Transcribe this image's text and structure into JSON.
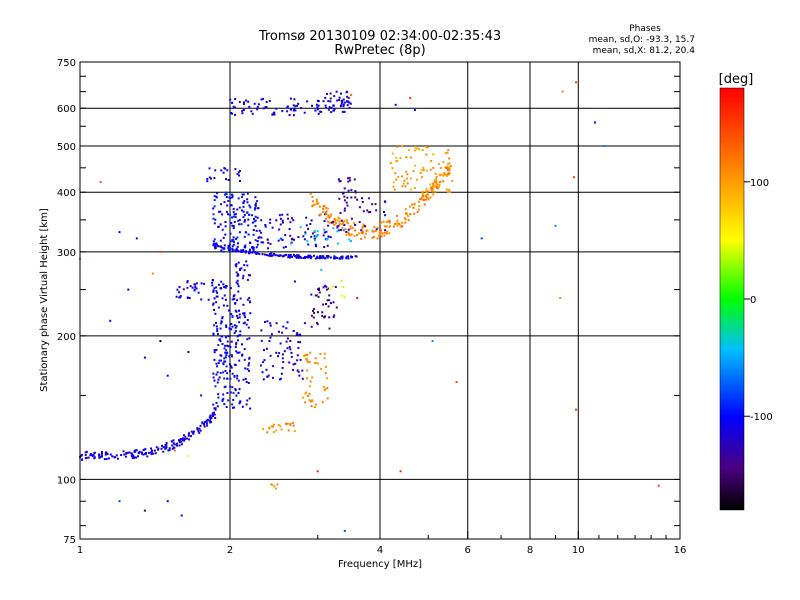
{
  "chart_data": {
    "type": "scatter",
    "title": "Tromsø 20130109 02:34:00-02:35:43",
    "subtitle": "RwPretec (8p)",
    "xlabel": "Frequency [MHz]",
    "ylabel": "Stationary phase Virtual Height [km]",
    "x_scale": "log2",
    "y_scale": "log",
    "xlim": [
      1,
      16
    ],
    "ylim": [
      75,
      750
    ],
    "x_ticks": [
      1,
      2,
      4,
      6,
      8,
      10,
      16
    ],
    "x_tick_labels": [
      "1",
      "2",
      "4",
      "6",
      "8",
      "10",
      "16"
    ],
    "y_ticks": [
      75,
      100,
      200,
      300,
      400,
      500,
      600,
      750
    ],
    "y_tick_labels": [
      "75",
      "100",
      "200",
      "300",
      "400",
      "500",
      "600",
      "750"
    ],
    "grid": true,
    "phase_stats": {
      "heading": "Phases",
      "line_o": "mean, sd,O: -93.3, 15.7",
      "line_x": "mean, sd,X:  81.2, 20.4"
    },
    "colorbar": {
      "unit_label": "[deg]",
      "range": [
        -180,
        180
      ],
      "ticks": [
        100,
        0,
        -100
      ],
      "tick_labels": [
        "100",
        "0",
        "-100"
      ]
    },
    "groups": [
      {
        "phase": -110,
        "x0": 1.0,
        "x1": 1.9,
        "y0": 112,
        "y1": 140,
        "n": 180,
        "curve": "riser"
      },
      {
        "phase": -105,
        "x0": 1.85,
        "x1": 2.05,
        "y0": 140,
        "y1": 260,
        "n": 150
      },
      {
        "phase": -110,
        "x0": 2.05,
        "x1": 2.2,
        "y0": 140,
        "y1": 290,
        "n": 100
      },
      {
        "phase": -115,
        "x0": 2.3,
        "x1": 2.85,
        "y0": 160,
        "y1": 215,
        "n": 70
      },
      {
        "phase": -110,
        "x0": 1.85,
        "x1": 3.6,
        "y0": 290,
        "y1": 305,
        "n": 160,
        "curve": "flat"
      },
      {
        "phase": -100,
        "x0": 1.85,
        "x1": 2.3,
        "y0": 300,
        "y1": 400,
        "n": 160
      },
      {
        "phase": -115,
        "x0": 2.3,
        "x1": 3.2,
        "y0": 305,
        "y1": 360,
        "n": 70
      },
      {
        "phase": -110,
        "x0": 2.0,
        "x1": 3.5,
        "y0": 580,
        "y1": 630,
        "n": 90
      },
      {
        "phase": -120,
        "x0": 3.1,
        "x1": 3.5,
        "y0": 600,
        "y1": 650,
        "n": 30
      },
      {
        "phase": -110,
        "x0": 1.55,
        "x1": 1.95,
        "y0": 238,
        "y1": 262,
        "n": 40
      },
      {
        "phase": -105,
        "x0": 1.8,
        "x1": 2.1,
        "y0": 420,
        "y1": 450,
        "n": 20
      },
      {
        "phase": 110,
        "x0": 2.9,
        "x1": 5.6,
        "y0": 330,
        "y1": 460,
        "n": 220,
        "curve": "arc"
      },
      {
        "phase": 100,
        "x0": 4.2,
        "x1": 5.6,
        "y0": 400,
        "y1": 500,
        "n": 80
      },
      {
        "phase": 110,
        "x0": 2.8,
        "x1": 3.15,
        "y0": 140,
        "y1": 185,
        "n": 45
      },
      {
        "phase": 110,
        "x0": 2.3,
        "x1": 2.7,
        "y0": 125,
        "y1": 132,
        "n": 20
      },
      {
        "phase": -140,
        "x0": 2.9,
        "x1": 3.3,
        "y0": 205,
        "y1": 255,
        "n": 40
      },
      {
        "phase": -130,
        "x0": 3.2,
        "x1": 4.1,
        "y0": 330,
        "y1": 390,
        "n": 40
      },
      {
        "phase": -135,
        "x0": 3.3,
        "x1": 3.6,
        "y0": 385,
        "y1": 430,
        "n": 20
      },
      {
        "phase": -40,
        "x0": 2.5,
        "x1": 3.5,
        "y0": 310,
        "y1": 340,
        "n": 20
      },
      {
        "phase": 110,
        "x0": 2.4,
        "x1": 2.5,
        "y0": 95,
        "y1": 99,
        "n": 5
      },
      {
        "phase": 40,
        "x0": 3.1,
        "x1": 3.4,
        "y0": 240,
        "y1": 262,
        "n": 6
      }
    ],
    "isolated_points": [
      {
        "x": 1.2,
        "y": 330,
        "phase": -110
      },
      {
        "x": 1.3,
        "y": 320,
        "phase": -110
      },
      {
        "x": 1.25,
        "y": 250,
        "phase": -100
      },
      {
        "x": 1.15,
        "y": 215,
        "phase": -110
      },
      {
        "x": 1.35,
        "y": 180,
        "phase": -105
      },
      {
        "x": 1.45,
        "y": 195,
        "phase": -180
      },
      {
        "x": 1.5,
        "y": 165,
        "phase": -110
      },
      {
        "x": 1.55,
        "y": 115,
        "phase": 130
      },
      {
        "x": 1.65,
        "y": 112,
        "phase": 60
      },
      {
        "x": 1.2,
        "y": 90,
        "phase": -80
      },
      {
        "x": 1.35,
        "y": 86,
        "phase": -140
      },
      {
        "x": 1.5,
        "y": 90,
        "phase": -110
      },
      {
        "x": 1.6,
        "y": 84,
        "phase": -120
      },
      {
        "x": 1.45,
        "y": 300,
        "phase": 150
      },
      {
        "x": 1.65,
        "y": 185,
        "phase": -100
      },
      {
        "x": 1.4,
        "y": 270,
        "phase": 110
      },
      {
        "x": 1.75,
        "y": 150,
        "phase": -95
      },
      {
        "x": 1.0,
        "y": 290,
        "phase": 110
      },
      {
        "x": 1.1,
        "y": 420,
        "phase": 140
      },
      {
        "x": 4.4,
        "y": 104,
        "phase": 160
      },
      {
        "x": 3.0,
        "y": 104,
        "phase": 160
      },
      {
        "x": 3.4,
        "y": 78,
        "phase": -80
      },
      {
        "x": 3.6,
        "y": 240,
        "phase": 170
      },
      {
        "x": 5.1,
        "y": 195,
        "phase": -60
      },
      {
        "x": 5.7,
        "y": 160,
        "phase": 140
      },
      {
        "x": 6.4,
        "y": 320,
        "phase": -80
      },
      {
        "x": 9.0,
        "y": 340,
        "phase": -60
      },
      {
        "x": 9.2,
        "y": 240,
        "phase": 110
      },
      {
        "x": 9.8,
        "y": 430,
        "phase": 150
      },
      {
        "x": 9.9,
        "y": 140,
        "phase": 150
      },
      {
        "x": 9.9,
        "y": 680,
        "phase": 150
      },
      {
        "x": 9.3,
        "y": 650,
        "phase": 110
      },
      {
        "x": 10.8,
        "y": 560,
        "phase": -100
      },
      {
        "x": 11.3,
        "y": 500,
        "phase": -60
      },
      {
        "x": 14.5,
        "y": 97,
        "phase": 150
      },
      {
        "x": 3.5,
        "y": 640,
        "phase": 130
      },
      {
        "x": 4.6,
        "y": 630,
        "phase": 160
      },
      {
        "x": 4.3,
        "y": 610,
        "phase": -110
      },
      {
        "x": 4.7,
        "y": 595,
        "phase": -100
      },
      {
        "x": 3.3,
        "y": 340,
        "phase": -110
      },
      {
        "x": 2.7,
        "y": 260,
        "phase": -105
      },
      {
        "x": 3.05,
        "y": 275,
        "phase": -40
      }
    ]
  }
}
